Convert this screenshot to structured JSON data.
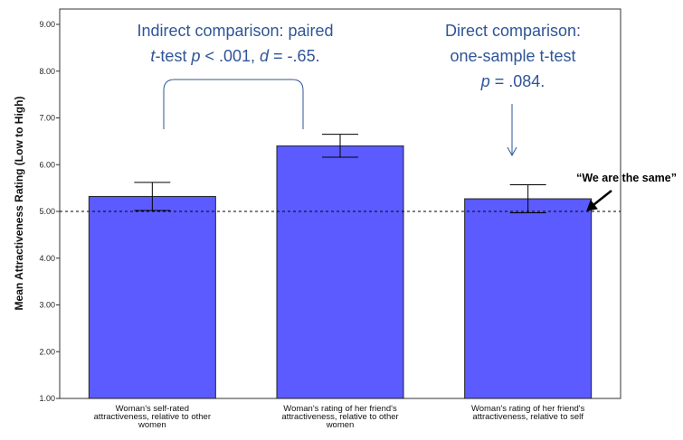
{
  "chart_data": {
    "type": "bar",
    "ylabel": "Mean Attractiveness Rating (Low to High)",
    "ylim": [
      1,
      9
    ],
    "yticks": [
      "1.00",
      "2.00",
      "3.00",
      "4.00",
      "5.00",
      "6.00",
      "7.00",
      "8.00",
      "9.00"
    ],
    "categories": [
      [
        "Woman's self-rated",
        "attractiveness, relative to other",
        "women"
      ],
      [
        "Woman's rating of her friend's",
        "attractiveness, relative to other",
        "women"
      ],
      [
        "Woman's rating of her friend's",
        "attractiveness, relative to self"
      ]
    ],
    "values": [
      5.32,
      6.4,
      5.27
    ],
    "error_low": [
      5.02,
      6.16,
      4.97
    ],
    "error_high": [
      5.62,
      6.65,
      5.57
    ],
    "reference_line": 5.0,
    "bar_color": "#5b5bff",
    "grid": false
  },
  "annotations": {
    "indirect": {
      "line1": "Indirect comparison: paired",
      "line2_t": "t",
      "line2_a": "-test ",
      "line2_p": "p",
      "line2_b": " < .001, ",
      "line2_d": "d",
      "line2_c": " = -.65."
    },
    "direct": {
      "line1": "Direct comparison:",
      "line2": "one-sample t-test",
      "line3_p": "p",
      "line3_rest": " = .084."
    },
    "same": "“We are the same”",
    "annotation_color": "#2f5597"
  }
}
